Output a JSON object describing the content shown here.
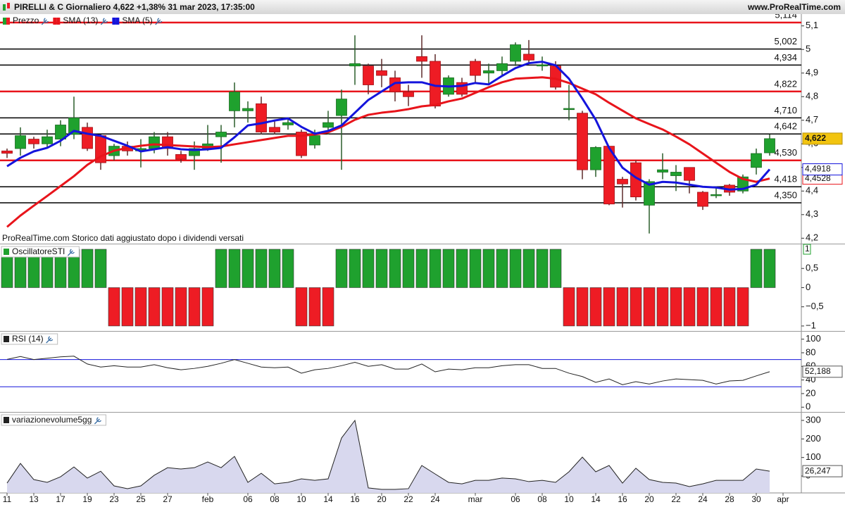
{
  "header": {
    "title": "PIRELLI & C Giornaliero 4,622 +1,38% 31 mar 2023, 17:35:00",
    "site": "www.ProRealTime.com"
  },
  "chart_data": [
    {
      "type": "candlestick",
      "name": "Prezzo",
      "up_color": "#1fa12e",
      "down_color": "#ee1c24",
      "note": "ProRealTime.com Storico dati aggiustato dopo i dividendi versati",
      "last_label": "4,622",
      "open": [
        4.57,
        4.58,
        4.62,
        4.6,
        4.62,
        4.64,
        4.67,
        4.635,
        4.55,
        4.59,
        4.57,
        4.58,
        4.63,
        4.555,
        4.55,
        4.58,
        4.63,
        4.74,
        4.74,
        4.77,
        4.67,
        4.68,
        4.65,
        4.595,
        4.67,
        4.72,
        4.93,
        4.93,
        4.91,
        4.88,
        4.82,
        4.97,
        4.95,
        4.81,
        4.86,
        4.95,
        4.9,
        4.91,
        4.95,
        4.98,
        4.93,
        4.93,
        4.745,
        4.73,
        4.49,
        4.59,
        4.45,
        4.52,
        4.34,
        4.48,
        4.465,
        4.5,
        4.395,
        4.38,
        4.425,
        4.4,
        4.5,
        4.562,
        null
      ],
      "high": [
        4.58,
        4.67,
        4.63,
        4.66,
        4.7,
        4.8,
        4.69,
        4.64,
        4.6,
        4.61,
        4.62,
        4.65,
        4.65,
        4.57,
        4.61,
        4.68,
        4.68,
        4.86,
        4.78,
        4.8,
        4.7,
        4.71,
        4.66,
        4.66,
        4.74,
        4.83,
        5.06,
        4.94,
        4.96,
        4.91,
        4.85,
        5.06,
        4.98,
        4.89,
        4.88,
        4.96,
        4.94,
        4.97,
        5.03,
        5.04,
        4.97,
        4.95,
        4.85,
        4.74,
        4.59,
        4.59,
        4.46,
        4.53,
        4.45,
        4.56,
        4.51,
        4.5,
        4.4,
        4.42,
        4.43,
        4.47,
        4.58,
        4.64,
        null
      ],
      "low": [
        4.54,
        4.55,
        4.58,
        4.58,
        4.59,
        4.62,
        4.57,
        4.49,
        4.53,
        4.55,
        4.5,
        4.56,
        4.55,
        4.52,
        4.49,
        4.57,
        4.52,
        4.67,
        4.69,
        4.64,
        4.64,
        4.66,
        4.54,
        4.58,
        4.64,
        4.49,
        4.85,
        4.81,
        4.84,
        4.78,
        4.76,
        4.88,
        4.75,
        4.8,
        4.8,
        4.86,
        4.85,
        4.89,
        4.93,
        4.94,
        4.91,
        4.83,
        4.7,
        4.45,
        4.46,
        4.34,
        4.33,
        4.36,
        4.22,
        4.45,
        4.4,
        4.39,
        4.32,
        4.37,
        4.38,
        4.39,
        4.47,
        4.55,
        null
      ],
      "close": [
        4.56,
        4.635,
        4.6,
        4.63,
        4.68,
        4.71,
        4.58,
        4.52,
        4.59,
        4.57,
        4.58,
        4.63,
        4.58,
        4.535,
        4.58,
        4.6,
        4.65,
        4.82,
        4.75,
        4.65,
        4.65,
        4.69,
        4.55,
        4.635,
        4.69,
        4.79,
        4.94,
        4.85,
        4.89,
        4.82,
        4.8,
        4.95,
        4.76,
        4.88,
        4.81,
        4.89,
        4.91,
        4.94,
        5.02,
        4.955,
        4.935,
        4.84,
        4.75,
        4.49,
        4.585,
        4.345,
        4.43,
        4.375,
        4.44,
        4.49,
        4.48,
        4.445,
        4.335,
        4.385,
        4.395,
        4.46,
        4.559,
        4.622,
        null
      ],
      "series": [
        {
          "name": "SMA (13)",
          "color": "#e8141b",
          "last_label": "4,4528",
          "values": [
            4.248,
            4.296,
            4.338,
            4.379,
            4.421,
            4.463,
            4.511,
            4.547,
            4.571,
            4.583,
            4.592,
            4.598,
            4.595,
            4.592,
            4.589,
            4.586,
            4.589,
            4.598,
            4.607,
            4.616,
            4.625,
            4.634,
            4.634,
            4.64,
            4.649,
            4.672,
            4.702,
            4.723,
            4.732,
            4.738,
            4.747,
            4.759,
            4.765,
            4.78,
            4.792,
            4.816,
            4.84,
            4.861,
            4.876,
            4.879,
            4.882,
            4.876,
            4.858,
            4.834,
            4.81,
            4.774,
            4.741,
            4.708,
            4.684,
            4.661,
            4.631,
            4.598,
            4.559,
            4.52,
            4.481,
            4.451,
            4.439,
            4.4528,
            null
          ]
        },
        {
          "name": "SMA (5)",
          "color": "#1414dc",
          "last_label": "4,4918",
          "values": [
            4.505,
            4.541,
            4.568,
            4.583,
            4.613,
            4.655,
            4.643,
            4.634,
            4.613,
            4.592,
            4.568,
            4.577,
            4.586,
            4.577,
            4.574,
            4.577,
            4.583,
            4.628,
            4.678,
            4.687,
            4.699,
            4.708,
            4.672,
            4.643,
            4.655,
            4.678,
            4.732,
            4.786,
            4.822,
            4.858,
            4.861,
            4.861,
            4.846,
            4.843,
            4.846,
            4.858,
            4.852,
            4.888,
            4.921,
            4.942,
            4.948,
            4.933,
            4.876,
            4.792,
            4.702,
            4.583,
            4.499,
            4.457,
            4.427,
            4.439,
            4.436,
            4.427,
            4.418,
            4.415,
            4.406,
            4.409,
            4.427,
            4.4918,
            null
          ]
        }
      ],
      "levels": [
        {
          "value": 5.114,
          "label": "5,114",
          "color": "#e8141b"
        },
        {
          "value": 5.002,
          "label": "5,002",
          "color": "#000000"
        },
        {
          "value": 4.934,
          "label": "4,934",
          "color": "#000000"
        },
        {
          "value": 4.822,
          "label": "4,822",
          "color": "#e8141b"
        },
        {
          "value": 4.71,
          "label": "4,710",
          "color": "#000000"
        },
        {
          "value": 4.642,
          "label": "4,642",
          "color": "#000000"
        },
        {
          "value": 4.53,
          "label": "4,530",
          "color": "#e8141b"
        },
        {
          "value": 4.418,
          "label": "4,418",
          "color": "#000000"
        },
        {
          "value": 4.35,
          "label": "4,350",
          "color": "#000000"
        }
      ],
      "ylim": [
        4.18,
        5.15
      ],
      "yticks": [
        {
          "value": 4.2,
          "label": "4,2"
        },
        {
          "value": 4.3,
          "label": "4,3"
        },
        {
          "value": 4.4,
          "label": "4,4"
        },
        {
          "value": 4.5,
          "label": "4,5"
        },
        {
          "value": 4.6,
          "label": "4,6"
        },
        {
          "value": 4.7,
          "label": "4,7"
        },
        {
          "value": 4.8,
          "label": "4,8"
        },
        {
          "value": 4.9,
          "label": "4,9"
        },
        5,
        {
          "value": 5.1,
          "label": "5,1"
        }
      ]
    },
    {
      "type": "bar",
      "title": "OscillatoreSTI",
      "up_color": "#1fa12e",
      "down_color": "#ee1c24",
      "last_label": "1",
      "values": [
        1,
        1,
        1,
        1,
        1,
        1,
        1,
        1,
        -1,
        -1,
        -1,
        -1,
        -1,
        -1,
        -1,
        -1,
        1,
        1,
        1,
        1,
        1,
        1,
        -1,
        -1,
        -1,
        1,
        1,
        1,
        1,
        1,
        1,
        1,
        1,
        1,
        1,
        1,
        1,
        1,
        1,
        1,
        1,
        1,
        -1,
        -1,
        -1,
        -1,
        -1,
        -1,
        -1,
        -1,
        -1,
        -1,
        -1,
        -1,
        -1,
        -1,
        1,
        1,
        null
      ],
      "ylim": [
        -1.13,
        1.11
      ],
      "yticks": [
        {
          "value": 0.5,
          "label": "0,5"
        },
        0,
        {
          "value": -0.5,
          "label": "−0,5"
        },
        {
          "value": -1,
          "label": "−1"
        }
      ]
    },
    {
      "type": "line",
      "title": "RSI (14)",
      "color": "#222222",
      "last_label": "52,188",
      "levels": [
        70,
        30
      ],
      "level_color": "#1414dc",
      "values": [
        70.3,
        74.5,
        70,
        72,
        74,
        75,
        63.5,
        59,
        61,
        59,
        59,
        62.5,
        58,
        55,
        57,
        60,
        64.5,
        70,
        64.5,
        59,
        58,
        59,
        50,
        55,
        57,
        61,
        66,
        60,
        62.5,
        56,
        56,
        63.5,
        52,
        56,
        55,
        58,
        58,
        61,
        62.5,
        62.5,
        57,
        57,
        50,
        45,
        36.5,
        41.5,
        33,
        37.5,
        34,
        38.5,
        41.5,
        40.5,
        39.5,
        34,
        38.5,
        39.5,
        46,
        52.188,
        null
      ],
      "ylim": [
        -7,
        110
      ],
      "yticks": [
        0,
        20,
        40,
        60,
        80,
        100
      ]
    },
    {
      "type": "area",
      "title": "variazionevolume5gg",
      "color": "#222222",
      "fill": "#d8d8ee",
      "last_label": "26,247",
      "values": [
        -38,
        68,
        -19,
        -34,
        -4,
        49,
        -11,
        26,
        -53,
        -68,
        -53,
        4,
        45,
        38,
        45,
        76,
        45,
        106,
        -34,
        15,
        -42,
        -34,
        -15,
        -23,
        -15,
        205,
        300,
        -64,
        -72,
        -72,
        -68,
        57,
        11,
        -34,
        -42,
        -23,
        -23,
        -11,
        -15,
        -30,
        -23,
        -34,
        23,
        102,
        23,
        57,
        -38,
        42,
        -19,
        -34,
        -38,
        -57,
        -42,
        -23,
        -23,
        -23,
        38,
        26.247,
        null
      ],
      "ylim": [
        -91,
        338
      ],
      "yticks": [
        0,
        100,
        200,
        300
      ],
      "categories": [
        "11",
        null,
        "13",
        null,
        "17",
        null,
        "19",
        null,
        "23",
        null,
        "25",
        null,
        "27",
        null,
        null,
        "feb",
        null,
        null,
        "06",
        null,
        "08",
        null,
        "10",
        null,
        "14",
        null,
        "16",
        null,
        "20",
        null,
        "22",
        null,
        "24",
        null,
        null,
        "mar",
        null,
        null,
        "06",
        null,
        "08",
        null,
        "10",
        null,
        "14",
        null,
        "16",
        null,
        "20",
        null,
        "22",
        null,
        "24",
        null,
        "28",
        null,
        "30",
        null,
        "apr"
      ]
    }
  ]
}
